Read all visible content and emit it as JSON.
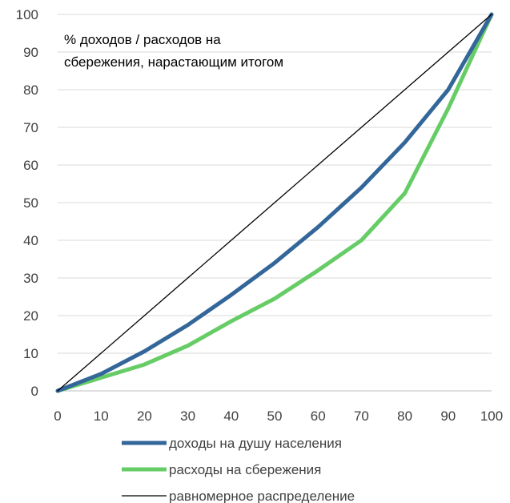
{
  "chart_data": {
    "type": "line",
    "title": "",
    "xlabel": "",
    "ylabel": "",
    "annotation_lines": [
      "% доходов / расходов на",
      "сбережения, нарастающим итогом"
    ],
    "x": [
      0,
      10,
      20,
      30,
      40,
      50,
      60,
      70,
      80,
      90,
      100
    ],
    "xlim": [
      0,
      100
    ],
    "ylim": [
      0,
      100
    ],
    "x_ticks": [
      "0",
      "10",
      "20",
      "30",
      "40",
      "50",
      "60",
      "70",
      "80",
      "90",
      "100"
    ],
    "y_ticks": [
      "0",
      "10",
      "20",
      "30",
      "40",
      "50",
      "60",
      "70",
      "80",
      "90",
      "100"
    ],
    "grid": true,
    "legend_position": "bottom",
    "series": [
      {
        "name": "доходы на душу населения",
        "color": "#336699",
        "values": [
          0,
          4.5,
          10.5,
          17.5,
          25.5,
          34,
          43.5,
          54,
          66,
          80,
          100
        ]
      },
      {
        "name": "расходы на сбережения",
        "color": "#66cc66",
        "values": [
          0,
          3.5,
          7,
          12,
          18.5,
          24.5,
          32,
          40,
          52.5,
          75,
          100
        ]
      },
      {
        "name": "равномерное распределение",
        "color": "#000000",
        "values": [
          0,
          10,
          20,
          30,
          40,
          50,
          60,
          70,
          80,
          90,
          100
        ]
      }
    ]
  }
}
